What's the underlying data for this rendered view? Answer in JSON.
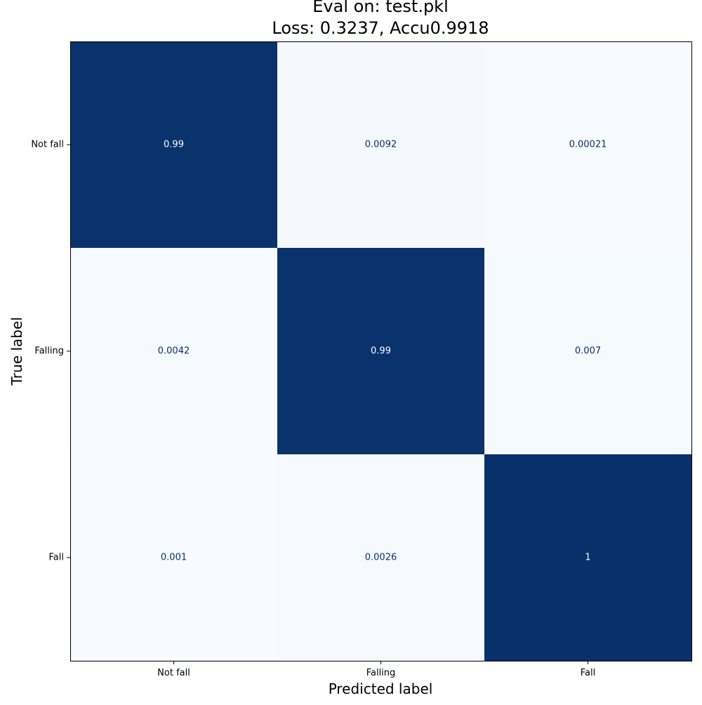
{
  "chart_data": {
    "type": "heatmap",
    "title_lines": [
      "Eval on: test.pkl",
      "Loss: 0.3237, Accu0.9918"
    ],
    "xlabel": "Predicted label",
    "ylabel": "True label",
    "x_categories": [
      "Not fall",
      "Falling",
      "Fall"
    ],
    "y_categories": [
      "Not fall",
      "Falling",
      "Fall"
    ],
    "values": [
      [
        0.99,
        0.0092,
        0.00021
      ],
      [
        0.0042,
        0.99,
        0.007
      ],
      [
        0.001,
        0.0026,
        1
      ]
    ],
    "value_labels": [
      [
        "0.99",
        "0.0092",
        "0.00021"
      ],
      [
        "0.0042",
        "0.99",
        "0.007"
      ],
      [
        "0.001",
        "0.0026",
        "1"
      ]
    ],
    "colormap": "Blues",
    "vrange": [
      0,
      1
    ],
    "colors": {
      "low": "#f7fbff",
      "high": "#08306b",
      "text_on_dark": "#ffffff",
      "text_on_light": "#08306b"
    }
  }
}
